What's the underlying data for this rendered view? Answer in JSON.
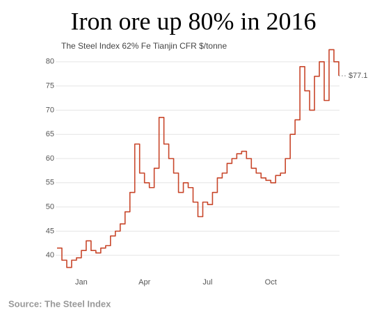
{
  "chart_data": {
    "type": "line",
    "title": "Iron ore up 80% in 2016",
    "subtitle": "The Steel Index 62% Fe Tianjin CFR $/tonne",
    "source": "Source: The Steel Index",
    "categories": [
      null,
      null,
      null,
      null,
      null,
      "Jan",
      null,
      null,
      null,
      null,
      null,
      null,
      null,
      null,
      null,
      null,
      null,
      null,
      "Apr",
      null,
      null,
      null,
      null,
      null,
      null,
      null,
      null,
      null,
      null,
      null,
      null,
      "Jul",
      null,
      null,
      null,
      null,
      null,
      null,
      null,
      null,
      null,
      null,
      null,
      null,
      "Oct",
      null,
      null,
      null,
      null,
      null,
      null,
      null,
      null,
      null,
      null,
      null,
      null,
      null,
      null
    ],
    "values": [
      41.5,
      39,
      37.5,
      39,
      39.5,
      41,
      43,
      41,
      40.5,
      41.5,
      42,
      44,
      45,
      46.5,
      49,
      53,
      63,
      57,
      55,
      54,
      58,
      68.5,
      63,
      60,
      57,
      53,
      55,
      54,
      51,
      48,
      51,
      50.5,
      53,
      56,
      57,
      59,
      60,
      61,
      61.5,
      60,
      58,
      57,
      56,
      55.5,
      55,
      56.5,
      57,
      60,
      65,
      68,
      79,
      74,
      70,
      77,
      80,
      72,
      82.5,
      80,
      77.1
    ],
    "value_labels": [
      null,
      null,
      null,
      null,
      null,
      null,
      null,
      null,
      null,
      null,
      null,
      null,
      null,
      null,
      null,
      null,
      null,
      null,
      null,
      null,
      null,
      null,
      null,
      null,
      null,
      null,
      null,
      null,
      null,
      null,
      null,
      null,
      null,
      null,
      null,
      null,
      null,
      null,
      null,
      null,
      null,
      null,
      null,
      null,
      null,
      null,
      null,
      null,
      null,
      null,
      null,
      null,
      null,
      null,
      null,
      null,
      null,
      null,
      "$77.10"
    ],
    "color": "#c8462a",
    "ylim": [
      36,
      84
    ],
    "yticks": [
      40,
      45,
      50,
      55,
      60,
      65,
      70,
      75,
      80
    ],
    "grid": true
  }
}
